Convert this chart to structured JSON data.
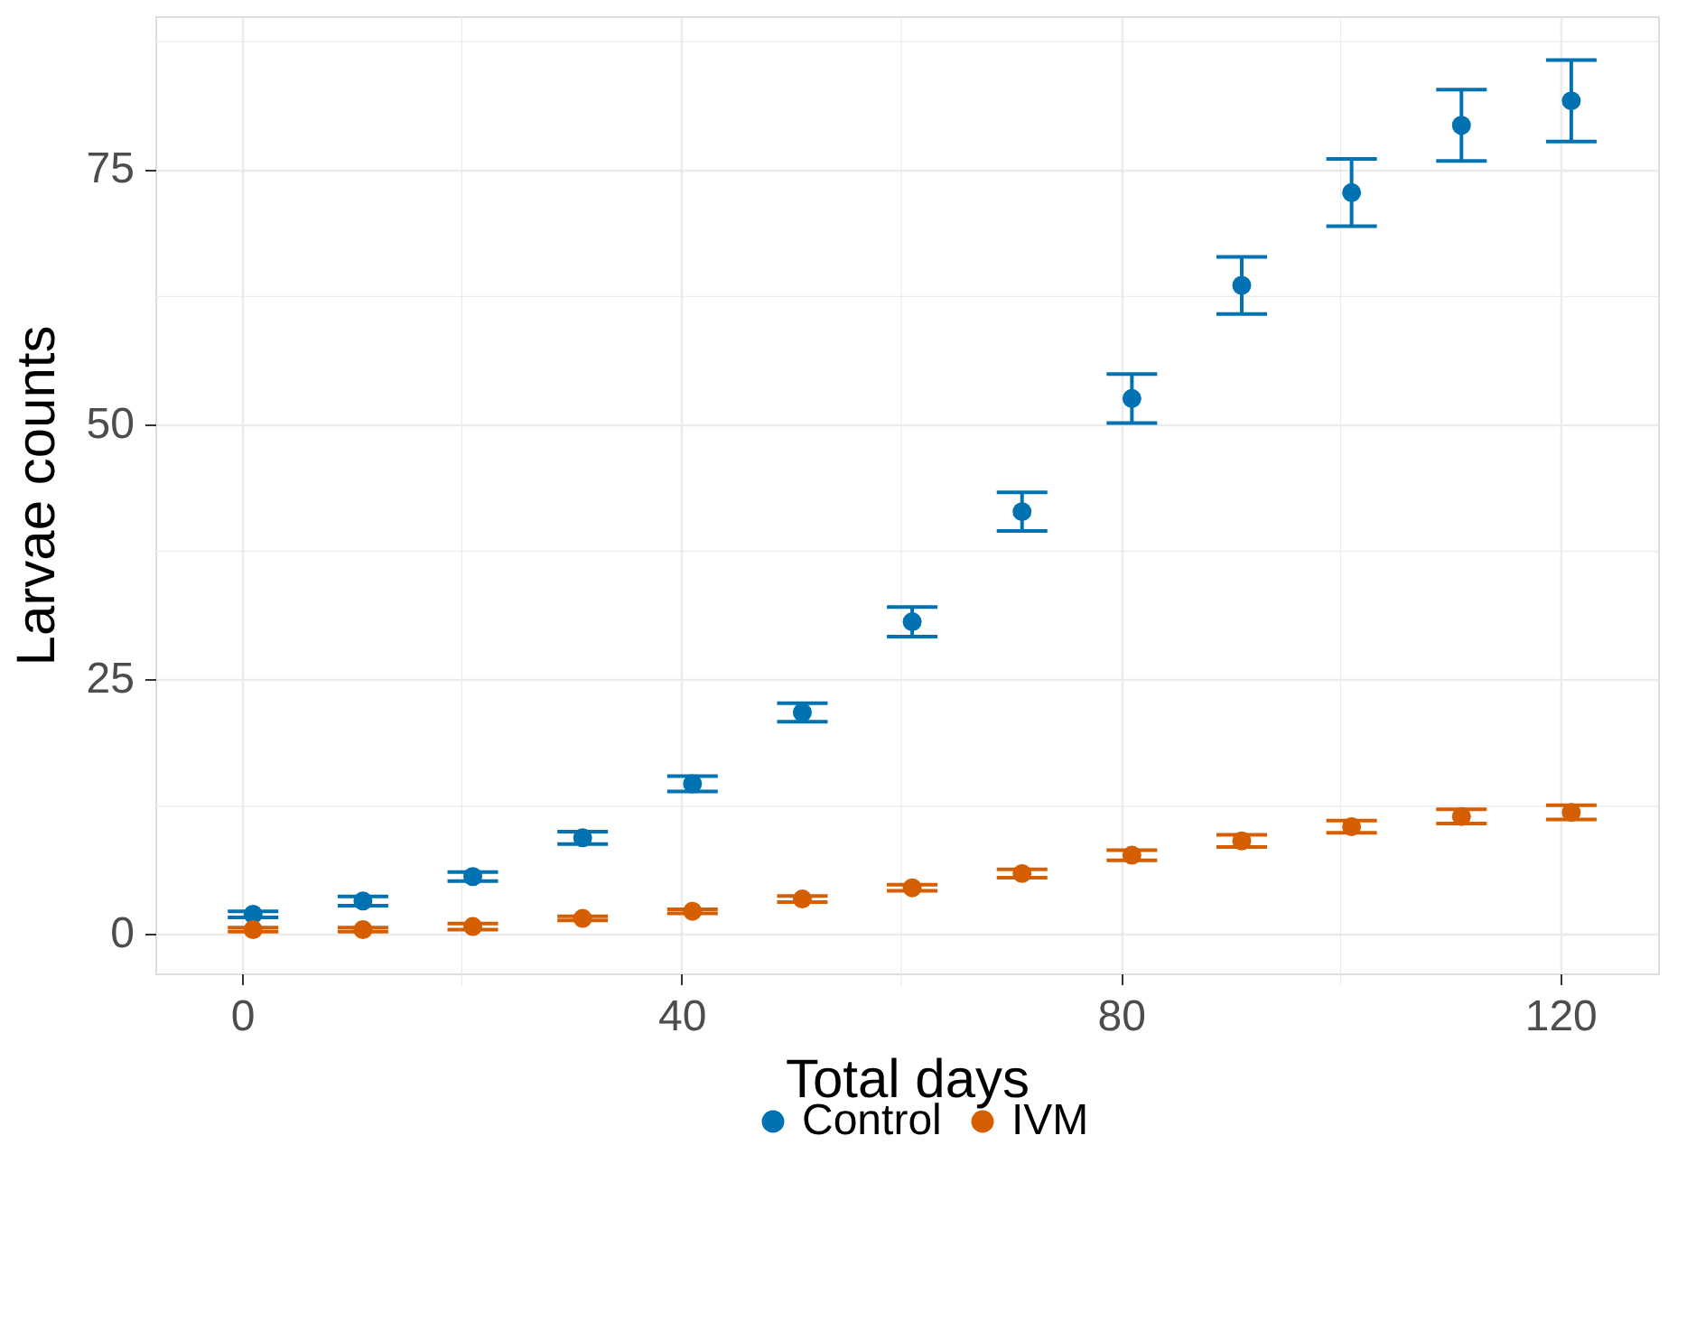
{
  "chart_data": {
    "type": "scatter",
    "xlabel": "Total days",
    "ylabel": "Larvae counts",
    "x": [
      1,
      11,
      21,
      31,
      41,
      51,
      61,
      71,
      81,
      91,
      101,
      111,
      121
    ],
    "series": [
      {
        "name": "Control",
        "color": "#0072b2",
        "values": [
          1.9,
          3.2,
          5.6,
          9.4,
          14.7,
          21.7,
          30.6,
          41.4,
          52.5,
          63.6,
          72.7,
          79.3,
          81.7
        ],
        "errors": [
          0.3,
          0.45,
          0.45,
          0.6,
          0.75,
          0.9,
          1.45,
          1.9,
          2.4,
          2.8,
          3.3,
          3.5,
          4.0
        ]
      },
      {
        "name": "IVM",
        "color": "#d55e00",
        "values": [
          0.4,
          0.4,
          0.7,
          1.5,
          2.2,
          3.4,
          4.5,
          5.9,
          7.7,
          9.1,
          10.5,
          11.5,
          11.9
        ],
        "errors": [
          0.2,
          0.2,
          0.3,
          0.2,
          0.2,
          0.3,
          0.3,
          0.4,
          0.5,
          0.6,
          0.6,
          0.7,
          0.7
        ]
      }
    ],
    "xlim": [
      -7.9,
      128.9
    ],
    "ylim": [
      -3.9,
      90
    ],
    "xticks": [
      0,
      40,
      80,
      120
    ],
    "yticks": [
      0,
      25,
      50,
      75
    ],
    "grid": true,
    "legend": "bottom",
    "marker": "circle"
  }
}
